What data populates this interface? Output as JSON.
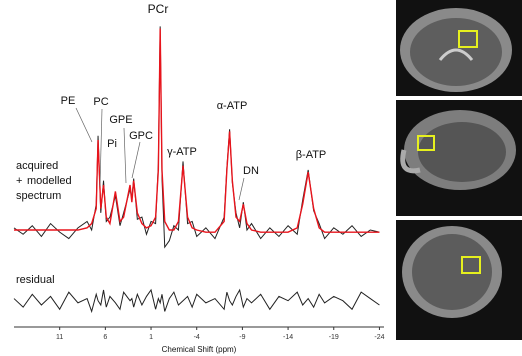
{
  "chart_data": {
    "type": "line",
    "x_label": "Chemical Shift (ppm)",
    "xlim": [
      16,
      -24.5
    ],
    "ylim": [
      -40,
      100
    ],
    "xticks": [
      11,
      6,
      1,
      -4,
      -9,
      -14,
      -19,
      -24
    ],
    "x": [
      16,
      15,
      14,
      13,
      12,
      11,
      10,
      9,
      8,
      7.5,
      7,
      6.8,
      6.5,
      6.2,
      5.9,
      5.5,
      4.9,
      4.4,
      4,
      3.3,
      3.1,
      2.9,
      2.5,
      2,
      1.5,
      1,
      0.5,
      0.2,
      0,
      -0.2,
      -0.5,
      -1,
      -1.5,
      -2,
      -2.5,
      -3,
      -3.5,
      -4,
      -5,
      -6,
      -7,
      -7.3,
      -7.6,
      -7.9,
      -8.3,
      -8.7,
      -9.1,
      -9.5,
      -10,
      -11,
      -12,
      -13,
      -14,
      -15,
      -15.6,
      -16.2,
      -16.8,
      -17.4,
      -18,
      -19,
      -20,
      -21,
      -22,
      -23,
      -24
    ],
    "series": [
      {
        "name": "acquired",
        "color": "#222222",
        "values": [
          3,
          0,
          4,
          -1,
          5,
          1,
          -2,
          3,
          6,
          2,
          14,
          46,
          10,
          25,
          6,
          8,
          18,
          4,
          10,
          21,
          17,
          26,
          7,
          8,
          0,
          6,
          5,
          33,
          97,
          26,
          -6,
          -3,
          4,
          2,
          34,
          5,
          6,
          -1,
          3,
          -2,
          8,
          31,
          49,
          24,
          10,
          3,
          15,
          2,
          5,
          -2,
          3,
          -1,
          4,
          0,
          16,
          30,
          11,
          5,
          -2,
          3,
          0,
          4,
          -1,
          2,
          1
        ]
      },
      {
        "name": "modelled",
        "color": "#e8141c",
        "values": [
          2,
          2,
          2,
          2,
          2,
          2,
          2,
          2,
          3,
          5,
          12,
          44,
          12,
          23,
          8,
          5,
          20,
          6,
          8,
          23,
          15,
          25,
          10,
          5,
          3,
          4,
          8,
          30,
          96,
          30,
          6,
          2,
          2,
          6,
          32,
          8,
          3,
          2,
          1,
          1,
          6,
          30,
          48,
          25,
          8,
          6,
          14,
          5,
          2,
          1,
          1,
          1,
          1,
          3,
          14,
          29,
          12,
          3,
          1,
          1,
          1,
          1,
          1,
          1,
          1
        ]
      },
      {
        "name": "residual",
        "color": "#222222",
        "values": [
          -30,
          -34,
          -28,
          -33,
          -29,
          -35,
          -27,
          -32,
          -30,
          -36,
          -28,
          -31,
          -33,
          -26,
          -34,
          -29,
          -32,
          -35,
          -27,
          -31,
          -30,
          -34,
          -28,
          -33,
          -29,
          -26,
          -35,
          -30,
          -32,
          -28,
          -36,
          -30,
          -27,
          -33,
          -31,
          -29,
          -34,
          -28,
          -32,
          -30,
          -35,
          -27,
          -31,
          -33,
          -29,
          -26,
          -34,
          -30,
          -32,
          -28,
          -35,
          -29,
          -31,
          -27,
          -33,
          -30,
          -34,
          -28,
          -32,
          -29,
          -31,
          -35,
          -27,
          -30,
          -33
        ]
      }
    ],
    "annotations": [
      "PCr",
      "PE",
      "PC",
      "GPE",
      "Pi",
      "GPC",
      "γ-ATP",
      "α-ATP",
      "DN",
      "β-ATP",
      "+",
      "spectrum"
    ]
  }
}
